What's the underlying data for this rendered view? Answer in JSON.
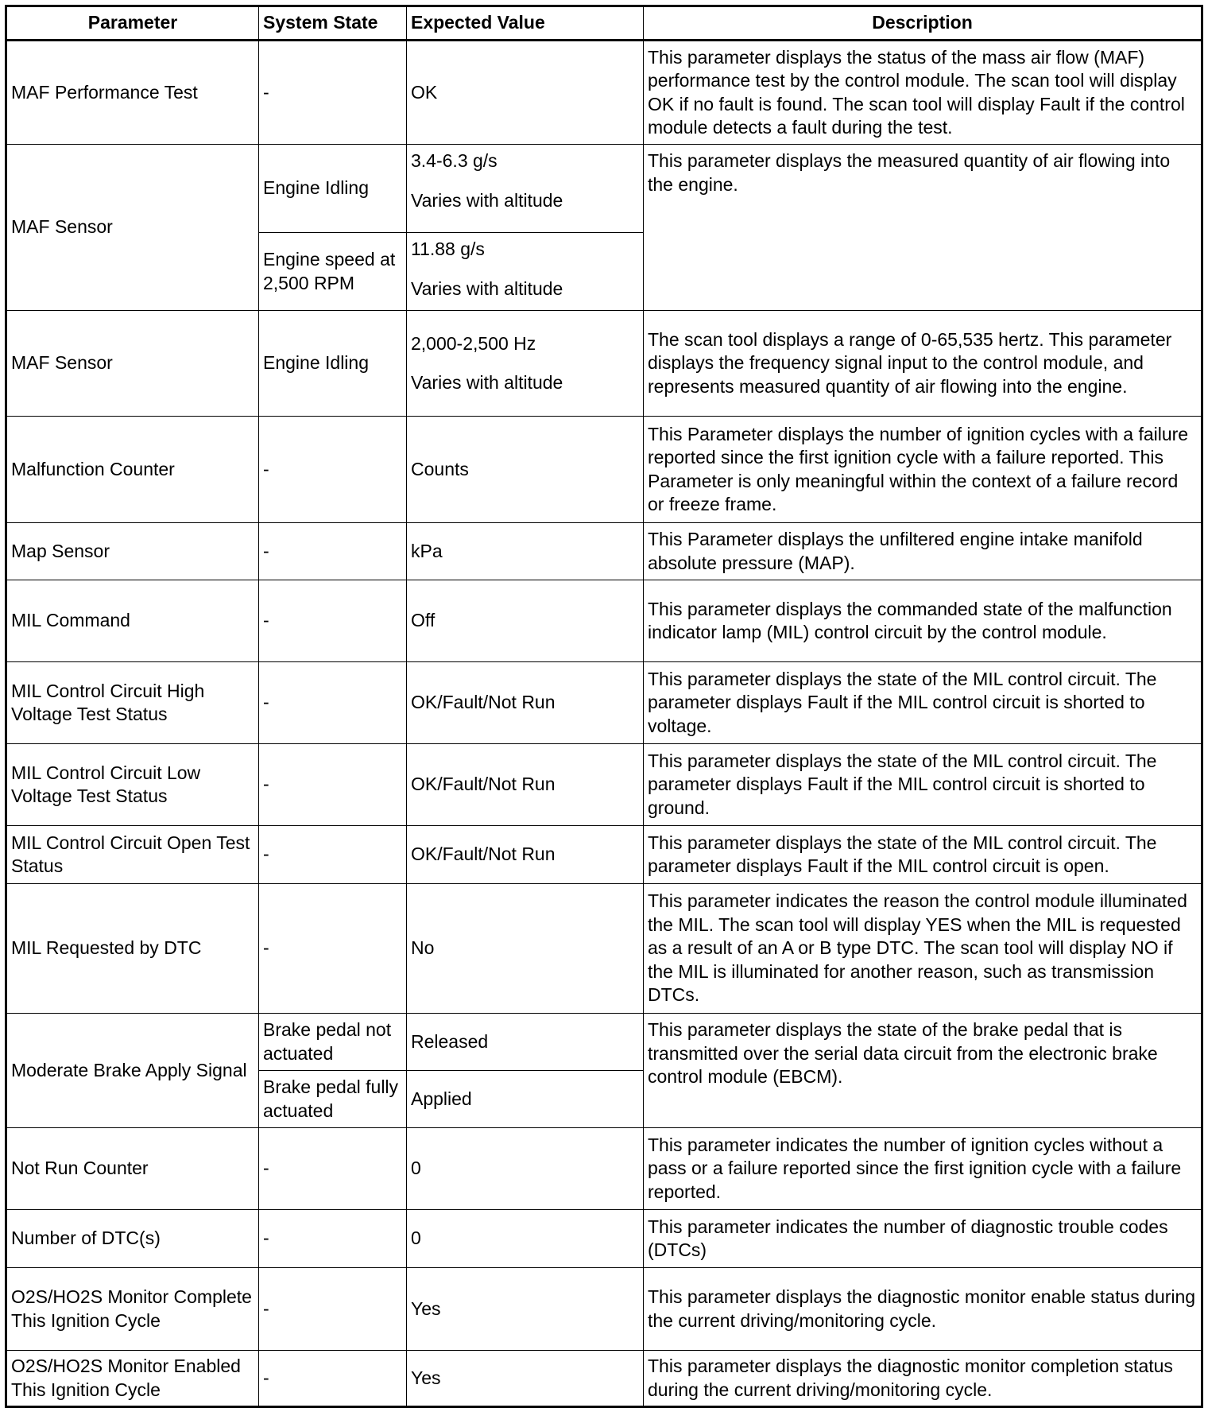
{
  "headers": {
    "parameter": "Parameter",
    "system_state": "System State",
    "expected_value": "Expected Value",
    "description": "Description"
  },
  "rows": [
    {
      "parameter": "MAF Performance Test",
      "state": "-",
      "value": "OK",
      "description": "This parameter displays the status of the mass air flow (MAF) performance test by the control module. The scan tool will display OK if no fault is found. The scan tool will display Fault if the control module detects a fault during the test."
    },
    {
      "parameter": "MAF Sensor",
      "description": "This parameter displays the measured quantity of air flowing into the engine.",
      "sub": [
        {
          "state": "Engine Idling",
          "value": "3.4-6.3 g/s",
          "value_note": "Varies with altitude"
        },
        {
          "state": "Engine speed at 2,500 RPM",
          "value": "11.88 g/s",
          "value_note": "Varies with altitude"
        }
      ]
    },
    {
      "parameter": "MAF Sensor",
      "state": "Engine Idling",
      "value": "2,000-2,500 Hz",
      "value_note": "Varies with altitude",
      "description": "The scan tool displays a range of 0-65,535 hertz. This parameter displays the frequency signal input to the control module, and represents measured quantity of air flowing into the engine."
    },
    {
      "parameter": "Malfunction Counter",
      "state": "-",
      "value": "Counts",
      "description": "This Parameter displays the number of ignition cycles with a failure reported since the first ignition cycle with a failure reported. This Parameter is only meaningful within the context of a failure record or freeze frame."
    },
    {
      "parameter": "Map Sensor",
      "state": "-",
      "value": "kPa",
      "description": "This Parameter displays the unfiltered engine intake manifold absolute pressure (MAP)."
    },
    {
      "parameter": "MIL Command",
      "state": "-",
      "value": "Off",
      "description": "This parameter displays the commanded state of the malfunction indicator lamp (MIL) control circuit by the control module."
    },
    {
      "parameter": "MIL Control Circuit High Voltage Test Status",
      "state": "-",
      "value": "OK/Fault/Not Run",
      "description": "This parameter displays the state of the MIL control circuit. The parameter displays Fault if the MIL control circuit is shorted to voltage."
    },
    {
      "parameter": "MIL Control Circuit Low Voltage Test Status",
      "state": "-",
      "value": "OK/Fault/Not Run",
      "description": "This parameter displays the state of the MIL control circuit. The parameter displays Fault if the MIL control circuit is shorted to ground."
    },
    {
      "parameter": "MIL Control Circuit Open Test Status",
      "state": "-",
      "value": "OK/Fault/Not Run",
      "description": "This parameter displays the state of the MIL control circuit. The parameter displays Fault if the MIL control circuit is open."
    },
    {
      "parameter": "MIL Requested by DTC",
      "state": "-",
      "value": "No",
      "description": "This parameter indicates the reason the control module illuminated the MIL. The scan tool will display YES when the MIL is requested as a result of an A or B type DTC. The scan tool will display NO if the MIL is illuminated for another reason, such as transmission DTCs."
    },
    {
      "parameter": "Moderate Brake Apply Signal",
      "description": "This parameter displays the state of the brake pedal that is transmitted over the serial data circuit from the electronic brake control module (EBCM).",
      "sub": [
        {
          "state": "Brake pedal not actuated",
          "value": "Released"
        },
        {
          "state": "Brake pedal fully actuated",
          "value": "Applied"
        }
      ]
    },
    {
      "parameter": "Not Run Counter",
      "state": "-",
      "value": "0",
      "description": "This parameter indicates the number of ignition cycles without a pass or a failure reported since the first ignition cycle with a failure reported."
    },
    {
      "parameter": "Number of DTC(s)",
      "state": "-",
      "value": "0",
      "description": "This parameter indicates the number of diagnostic trouble codes (DTCs)"
    },
    {
      "parameter": "O2S/HO2S Monitor Complete This Ignition Cycle",
      "state": "-",
      "value": "Yes",
      "description": "This parameter displays the diagnostic monitor enable status during the current driving/monitoring cycle."
    },
    {
      "parameter": "O2S/HO2S Monitor Enabled This Ignition Cycle",
      "state": "-",
      "value": "Yes",
      "description": "This parameter displays the diagnostic monitor completion status during the current driving/monitoring cycle."
    }
  ]
}
